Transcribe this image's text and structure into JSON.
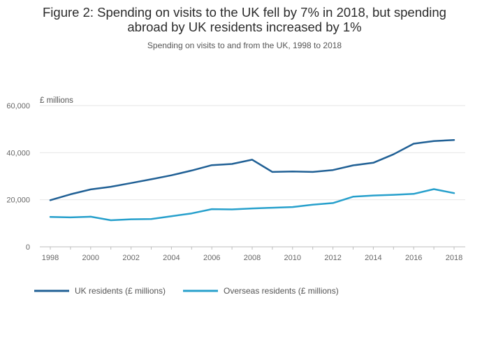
{
  "chart_data": {
    "type": "line",
    "title": "Figure 2: Spending on visits to the UK fell by 7% in 2018, but spending abroad by UK residents increased by 1%",
    "subtitle": "Spending on visits to and from the UK, 1998 to 2018",
    "ylabel": "£ millions",
    "xlabel": "",
    "ylim": [
      0,
      60000
    ],
    "yticks": [
      0,
      20000,
      40000,
      60000
    ],
    "ytick_labels": [
      "0",
      "20,000",
      "40,000",
      "60,000"
    ],
    "xticks": [
      1998,
      2000,
      2002,
      2004,
      2006,
      2008,
      2010,
      2012,
      2014,
      2016,
      2018
    ],
    "xtick_labels": [
      "1998",
      "2000",
      "2002",
      "2004",
      "2006",
      "2008",
      "2010",
      "2012",
      "2014",
      "2016",
      "2018"
    ],
    "x": [
      1998,
      1999,
      2000,
      2001,
      2002,
      2003,
      2004,
      2005,
      2006,
      2007,
      2008,
      2009,
      2010,
      2011,
      2012,
      2013,
      2014,
      2015,
      2016,
      2017,
      2018
    ],
    "grid": true,
    "legend_position": "bottom",
    "series": [
      {
        "name": "UK residents (£ millions)",
        "color": "#206095",
        "values": [
          19800,
          22300,
          24400,
          25500,
          27100,
          28700,
          30400,
          32400,
          34700,
          35200,
          37000,
          31800,
          32000,
          31800,
          32600,
          34600,
          35700,
          39300,
          43800,
          44900,
          45400
        ]
      },
      {
        "name": "Overseas residents (£ millions)",
        "color": "#27a0cc",
        "values": [
          12700,
          12500,
          12800,
          11300,
          11700,
          11800,
          13000,
          14200,
          16000,
          15900,
          16300,
          16600,
          16900,
          17900,
          18600,
          21300,
          21800,
          22100,
          22500,
          24500,
          22800
        ]
      }
    ]
  }
}
